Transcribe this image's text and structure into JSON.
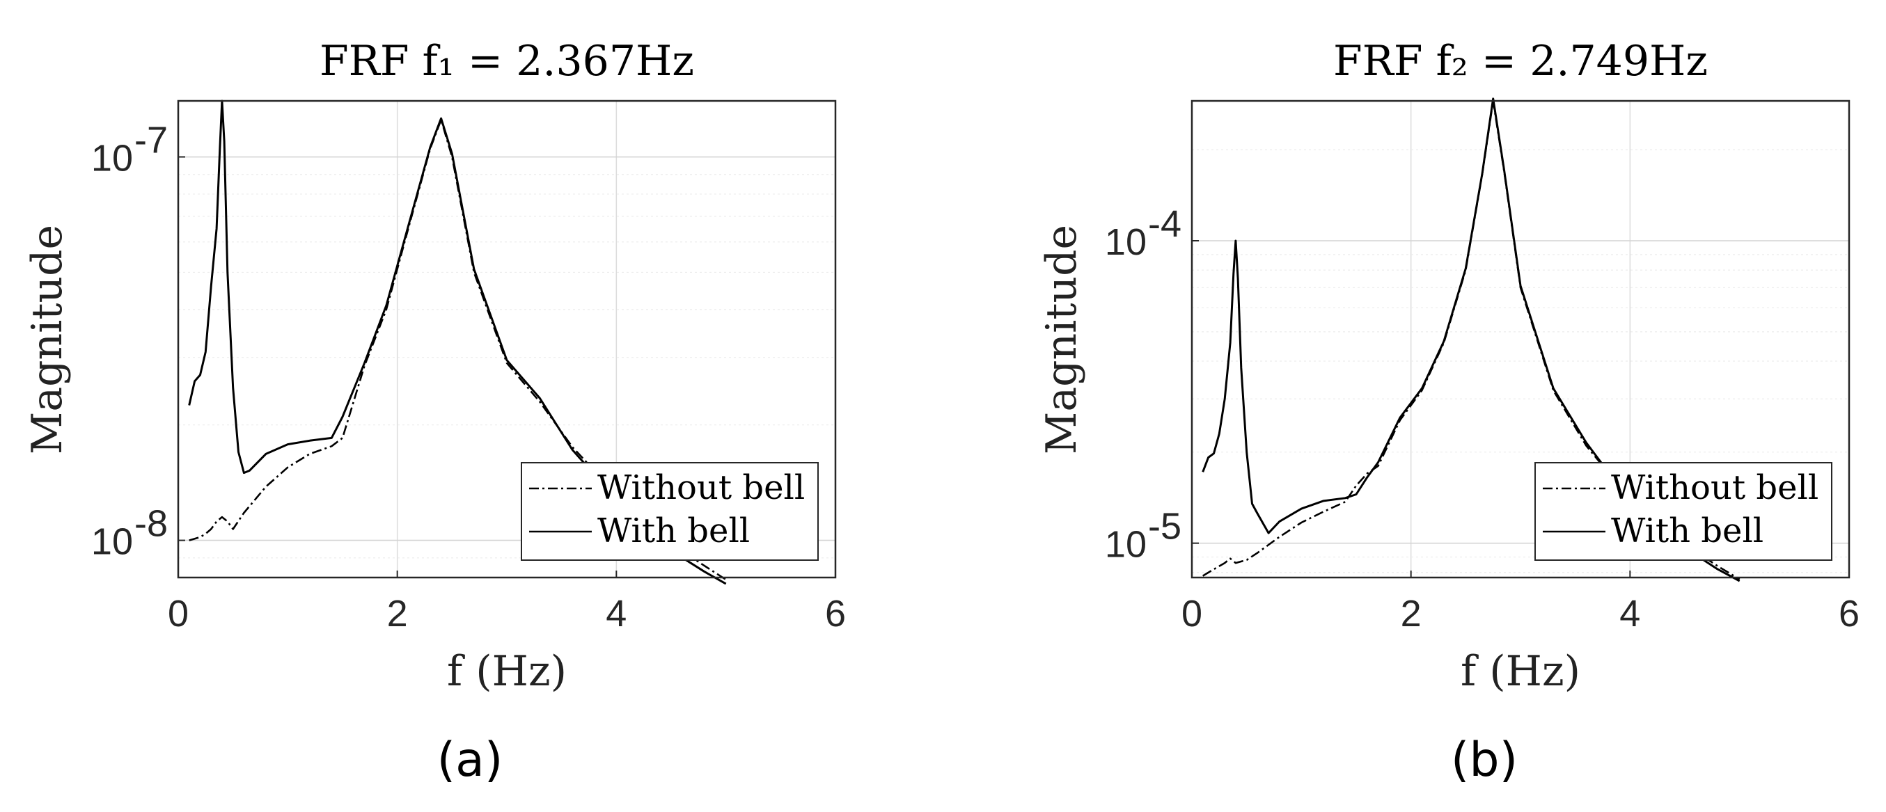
{
  "figure": {
    "panels": [
      "(a)",
      "(b)"
    ]
  },
  "chart_data": [
    {
      "type": "line",
      "title": "FRF f₁ = 2.367Hz",
      "xlabel": "f (Hz)",
      "ylabel": "Magnitude",
      "yscale": "log",
      "xlim": [
        0,
        6
      ],
      "ylim": [
        8e-09,
        1.4e-07
      ],
      "xticks": [
        0,
        2,
        4,
        6
      ],
      "xtick_labels": [
        "0",
        "2",
        "4",
        "6"
      ],
      "yticks": [
        1e-08,
        1e-07
      ],
      "ytick_labels": [
        {
          "base": "10",
          "exp": "-8"
        },
        {
          "base": "10",
          "exp": "-7"
        }
      ],
      "grid": true,
      "legend_position": "bottom-right",
      "series": [
        {
          "name": "Without bell",
          "style": "dashdot",
          "x": [
            0.1,
            0.2,
            0.25,
            0.3,
            0.35,
            0.4,
            0.45,
            0.5,
            0.6,
            0.8,
            1.0,
            1.2,
            1.4,
            1.5,
            1.7,
            1.9,
            2.1,
            2.3,
            2.4,
            2.5,
            2.7,
            3.0,
            3.3,
            3.6,
            4.0,
            4.4,
            4.8,
            5.0
          ],
          "y": [
            1e-08,
            1.02e-08,
            1.04e-08,
            1.07e-08,
            1.12e-08,
            1.15e-08,
            1.12e-08,
            1.07e-08,
            1.18e-08,
            1.38e-08,
            1.55e-08,
            1.68e-08,
            1.76e-08,
            1.85e-08,
            2.85e-08,
            4e-08,
            6.5e-08,
            1.05e-07,
            1.25e-07,
            1e-07,
            5e-08,
            2.9e-08,
            2.3e-08,
            1.75e-08,
            1.32e-08,
            1.02e-08,
            8.6e-09,
            7.9e-09
          ]
        },
        {
          "name": "With bell",
          "style": "solid",
          "x": [
            0.1,
            0.15,
            0.2,
            0.25,
            0.3,
            0.35,
            0.38,
            0.4,
            0.42,
            0.45,
            0.5,
            0.55,
            0.6,
            0.65,
            0.8,
            1.0,
            1.2,
            1.4,
            1.5,
            1.7,
            1.9,
            2.1,
            2.3,
            2.4,
            2.5,
            2.7,
            3.0,
            3.3,
            3.6,
            4.0,
            4.4,
            4.8,
            5.0
          ],
          "y": [
            2.25e-08,
            2.6e-08,
            2.7e-08,
            3.1e-08,
            4.6e-08,
            6.5e-08,
            1.05e-07,
            1.4e-07,
            1.1e-07,
            5e-08,
            2.5e-08,
            1.7e-08,
            1.5e-08,
            1.52e-08,
            1.68e-08,
            1.78e-08,
            1.82e-08,
            1.85e-08,
            2.1e-08,
            2.9e-08,
            4.1e-08,
            6.6e-08,
            1.06e-07,
            1.26e-07,
            1.02e-07,
            5.1e-08,
            2.95e-08,
            2.35e-08,
            1.72e-08,
            1.28e-08,
            9.8e-09,
            8.3e-09,
            7.7e-09
          ]
        }
      ]
    },
    {
      "type": "line",
      "title": "FRF f₂ = 2.749Hz",
      "xlabel": "f (Hz)",
      "ylabel": "Magnitude",
      "yscale": "log",
      "xlim": [
        0,
        6
      ],
      "ylim": [
        7.7e-06,
        0.00029
      ],
      "xticks": [
        0,
        2,
        4,
        6
      ],
      "xtick_labels": [
        "0",
        "2",
        "4",
        "6"
      ],
      "yticks": [
        1e-05,
        0.0001
      ],
      "ytick_labels": [
        {
          "base": "10",
          "exp": "-5"
        },
        {
          "base": "10",
          "exp": "-4"
        }
      ],
      "grid": true,
      "legend_position": "bottom-right",
      "series": [
        {
          "name": "Without bell",
          "style": "dashdot",
          "x": [
            0.1,
            0.2,
            0.3,
            0.35,
            0.4,
            0.5,
            0.6,
            0.8,
            1.0,
            1.2,
            1.4,
            1.5,
            1.6,
            1.7,
            1.9,
            2.1,
            2.3,
            2.5,
            2.65,
            2.75,
            2.85,
            3.0,
            3.3,
            3.6,
            4.0,
            4.4,
            4.8,
            5.0
          ],
          "y": [
            7.8e-06,
            8.2e-06,
            8.6e-06,
            8.9e-06,
            8.6e-06,
            8.8e-06,
            9.3e-06,
            1.05e-05,
            1.17e-05,
            1.27e-05,
            1.37e-05,
            1.55e-05,
            1.7e-05,
            1.8e-05,
            2.55e-05,
            3.2e-05,
            4.6e-05,
            8e-05,
            0.000165,
            0.00029,
            0.00017,
            7e-05,
            3.2e-05,
            2.1e-05,
            1.4e-05,
            1.05e-05,
            8.4e-06,
            7.6e-06
          ]
        },
        {
          "name": "With bell",
          "style": "solid",
          "x": [
            0.1,
            0.15,
            0.2,
            0.25,
            0.3,
            0.35,
            0.38,
            0.4,
            0.42,
            0.45,
            0.5,
            0.55,
            0.6,
            0.7,
            0.8,
            1.0,
            1.2,
            1.4,
            1.5,
            1.6,
            1.7,
            1.9,
            2.1,
            2.3,
            2.5,
            2.65,
            2.75,
            2.85,
            3.0,
            3.3,
            3.6,
            4.0,
            4.4,
            4.8,
            5.0
          ],
          "y": [
            1.72e-05,
            1.92e-05,
            1.98e-05,
            2.3e-05,
            3e-05,
            4.6e-05,
            7.8e-05,
            0.0001,
            7.5e-05,
            3.8e-05,
            2e-05,
            1.35e-05,
            1.25e-05,
            1.08e-05,
            1.18e-05,
            1.3e-05,
            1.38e-05,
            1.41e-05,
            1.45e-05,
            1.65e-05,
            1.85e-05,
            2.6e-05,
            3.25e-05,
            4.65e-05,
            8.1e-05,
            0.000166,
            0.000295,
            0.000172,
            7.1e-05,
            3.25e-05,
            2.15e-05,
            1.38e-05,
            1.02e-05,
            8.2e-06,
            7.5e-06
          ]
        }
      ]
    }
  ]
}
